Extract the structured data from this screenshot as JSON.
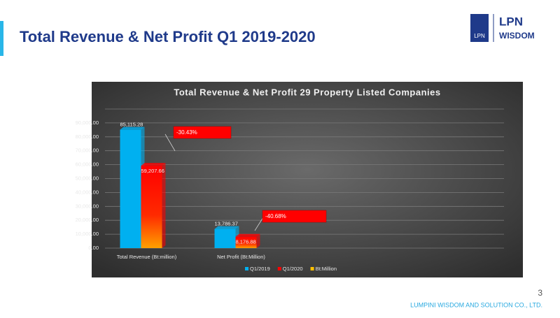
{
  "slide": {
    "title": "Total Revenue & Net Profit Q1 2019-2020",
    "logo_mark": "LPN",
    "logo_name": "LPN",
    "logo_sub": "WISDOM",
    "page_number": "3",
    "footer": "LUMPINI WISDOM AND SOLUTION CO., LTD."
  },
  "chart_data": {
    "type": "bar",
    "title": "Total Revenue & Net Profit 29 Property Listed Companies",
    "categories": [
      "Total Revenue (Bt:million)",
      "Net Profit (Bt:Million)"
    ],
    "series": [
      {
        "name": "Q1/2019",
        "color": "#00b0f0",
        "values": [
          85115.28,
          13786.37
        ],
        "value_labels": [
          "85,115.28",
          "13,786.37"
        ]
      },
      {
        "name": "Q1/2020",
        "color": "#ff0000",
        "values": [
          59207.66,
          8176.88
        ],
        "value_labels": [
          "59,207.66",
          "8,176.88"
        ]
      },
      {
        "name": "Bt:Million",
        "color": "#ffc000",
        "values": [
          null,
          null
        ]
      }
    ],
    "ylim": [
      0,
      100000
    ],
    "yticks": [
      {
        "value": 0,
        "label": "0.00"
      },
      {
        "value": 10000,
        "label": "10,000.00"
      },
      {
        "value": 20000,
        "label": "20,000.00"
      },
      {
        "value": 30000,
        "label": "30,000.00"
      },
      {
        "value": 40000,
        "label": "40,000.00"
      },
      {
        "value": 50000,
        "label": "50,000.00"
      },
      {
        "value": 60000,
        "label": "60,000.00"
      },
      {
        "value": 70000,
        "label": "70,000.00"
      },
      {
        "value": 80000,
        "label": "80,000.00"
      },
      {
        "value": 90000,
        "label": "90,000.00"
      }
    ],
    "grid": true,
    "legend": "bottom",
    "annotations": [
      {
        "text": "-30.43%",
        "color": "#ff0000"
      },
      {
        "text": "-40.68%",
        "color": "#ff0000"
      }
    ]
  }
}
